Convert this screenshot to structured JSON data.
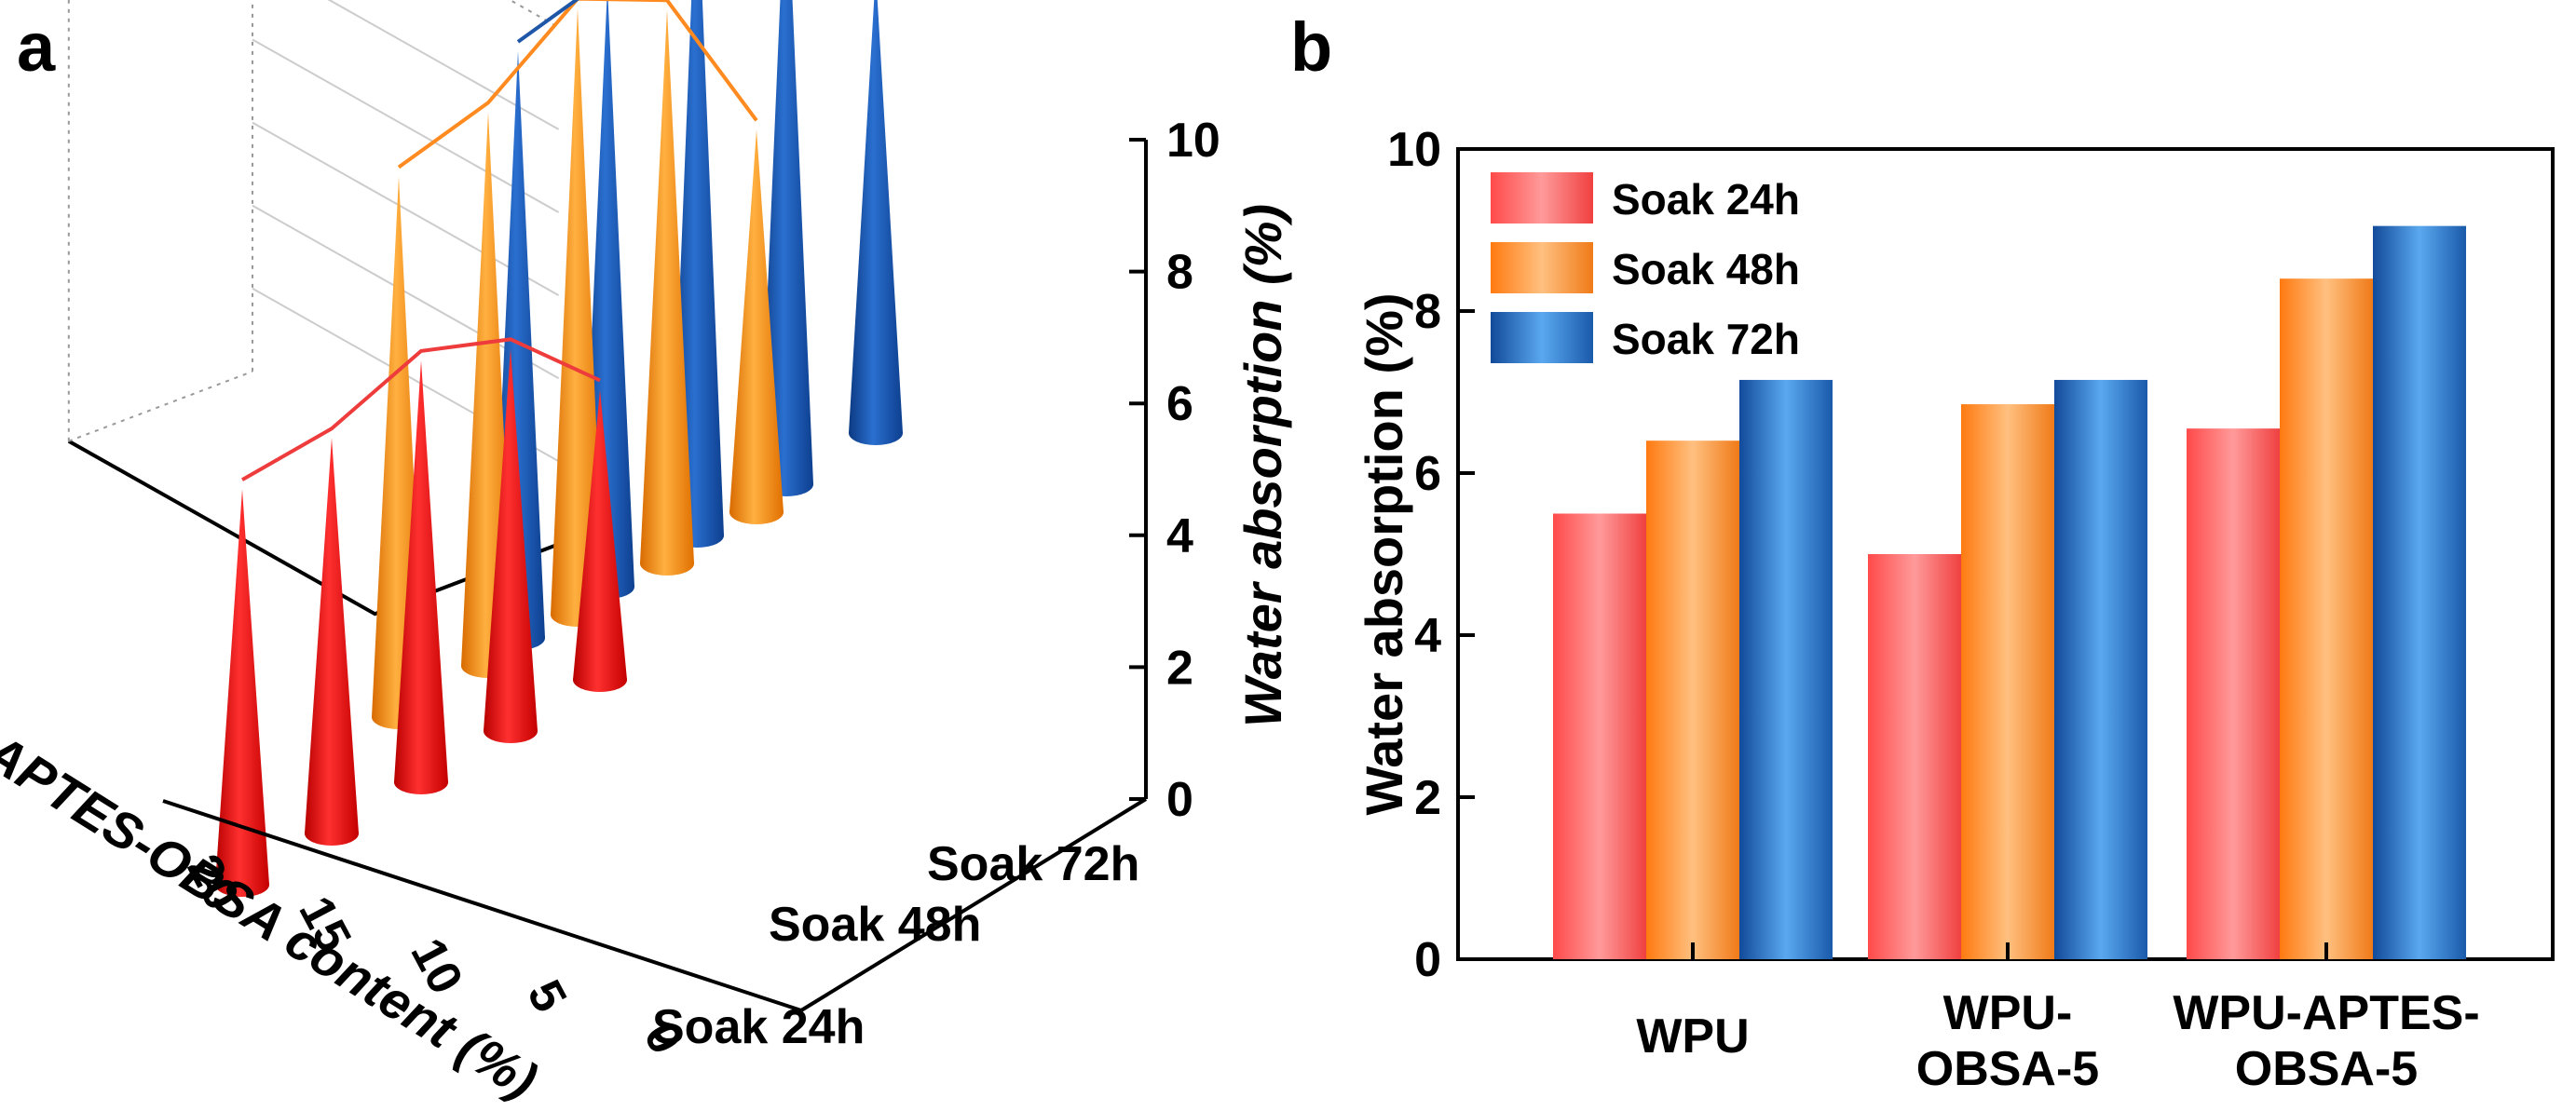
{
  "figure": {
    "panel_a_label": "a",
    "panel_b_label": "b",
    "colors": {
      "soak24": "#ee3b3b",
      "soak48": "#ff8a1f",
      "soak72": "#1f57a8"
    }
  },
  "chart_data": [
    {
      "panel": "a",
      "type": "3d-cone",
      "zlabel": "Water absorption (%)",
      "xlabel": "APTES-OBSA content (%)",
      "x_categories": [
        "0",
        "5",
        "10",
        "15",
        "20"
      ],
      "series_labels": [
        "Soak 24h",
        "Soak 48h",
        "Soak 72h"
      ],
      "z_ticks": [
        "0",
        "2",
        "4",
        "6",
        "8",
        "10"
      ],
      "zlim": [
        0,
        10
      ],
      "series": [
        {
          "name": "Soak 24h",
          "values": [
            4.4,
            5.8,
            6.4,
            6.0,
            6.0
          ]
        },
        {
          "name": "Soak 48h",
          "values": [
            5.8,
            8.4,
            9.2,
            8.4,
            8.2
          ]
        },
        {
          "name": "Soak 72h",
          "values": [
            7.0,
            9.5,
            10.2,
            9.1,
            8.9
          ]
        }
      ]
    },
    {
      "panel": "b",
      "type": "bar",
      "ylabel": "Water absorption (%)",
      "ylim": [
        0,
        10
      ],
      "y_ticks": [
        "0",
        "2",
        "4",
        "6",
        "8",
        "10"
      ],
      "categories": [
        {
          "line1": "WPU",
          "line2": ""
        },
        {
          "line1": "WPU-",
          "line2": "OBSA-5"
        },
        {
          "line1": "WPU-APTES-",
          "line2": "OBSA-5"
        }
      ],
      "series": [
        {
          "name": "Soak 24h",
          "values": [
            5.5,
            5.0,
            6.55
          ]
        },
        {
          "name": "Soak 48h",
          "values": [
            6.4,
            6.85,
            8.4
          ]
        },
        {
          "name": "Soak 72h",
          "values": [
            7.15,
            7.15,
            9.05
          ]
        }
      ],
      "legend": [
        "Soak 24h",
        "Soak 48h",
        "Soak 72h"
      ]
    }
  ]
}
